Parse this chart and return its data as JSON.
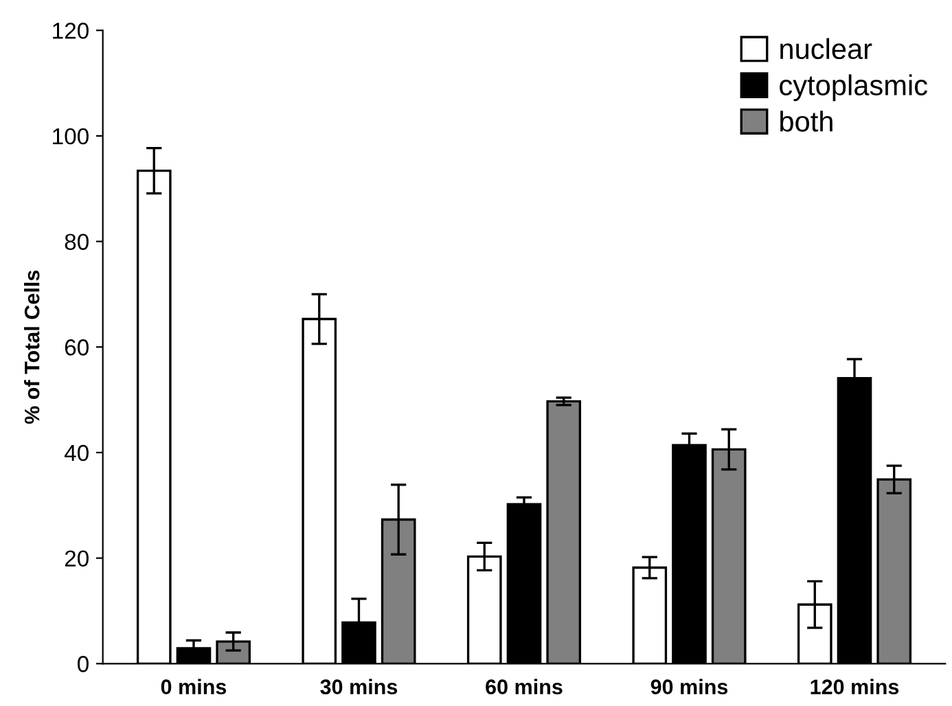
{
  "chart_data": {
    "type": "bar",
    "ylabel": "% of Total Cells",
    "categories": [
      "0 mins",
      "30 mins",
      "60 mins",
      "90 mins",
      "120 mins"
    ],
    "series": [
      {
        "name": "nuclear",
        "color": "#ffffff",
        "values": [
          93.4,
          65.3,
          20.3,
          18.2,
          11.2
        ],
        "errors": [
          4.3,
          4.7,
          2.6,
          2,
          4.4
        ]
      },
      {
        "name": "cytoplasmic",
        "color": "#000000",
        "values": [
          2.9,
          7.8,
          30.2,
          41.4,
          54.1
        ],
        "errors": [
          1.5,
          4.5,
          1.3,
          2.2,
          3.6
        ]
      },
      {
        "name": "both",
        "color": "#808080",
        "values": [
          4.2,
          27.3,
          49.7,
          40.6,
          34.9
        ],
        "errors": [
          1.7,
          6.6,
          0.7,
          3.8,
          2.6
        ]
      }
    ],
    "ylim": [
      0,
      120
    ],
    "yticks": [
      0,
      20,
      40,
      60,
      80,
      100,
      120
    ],
    "grid": false,
    "legend": "top right"
  }
}
